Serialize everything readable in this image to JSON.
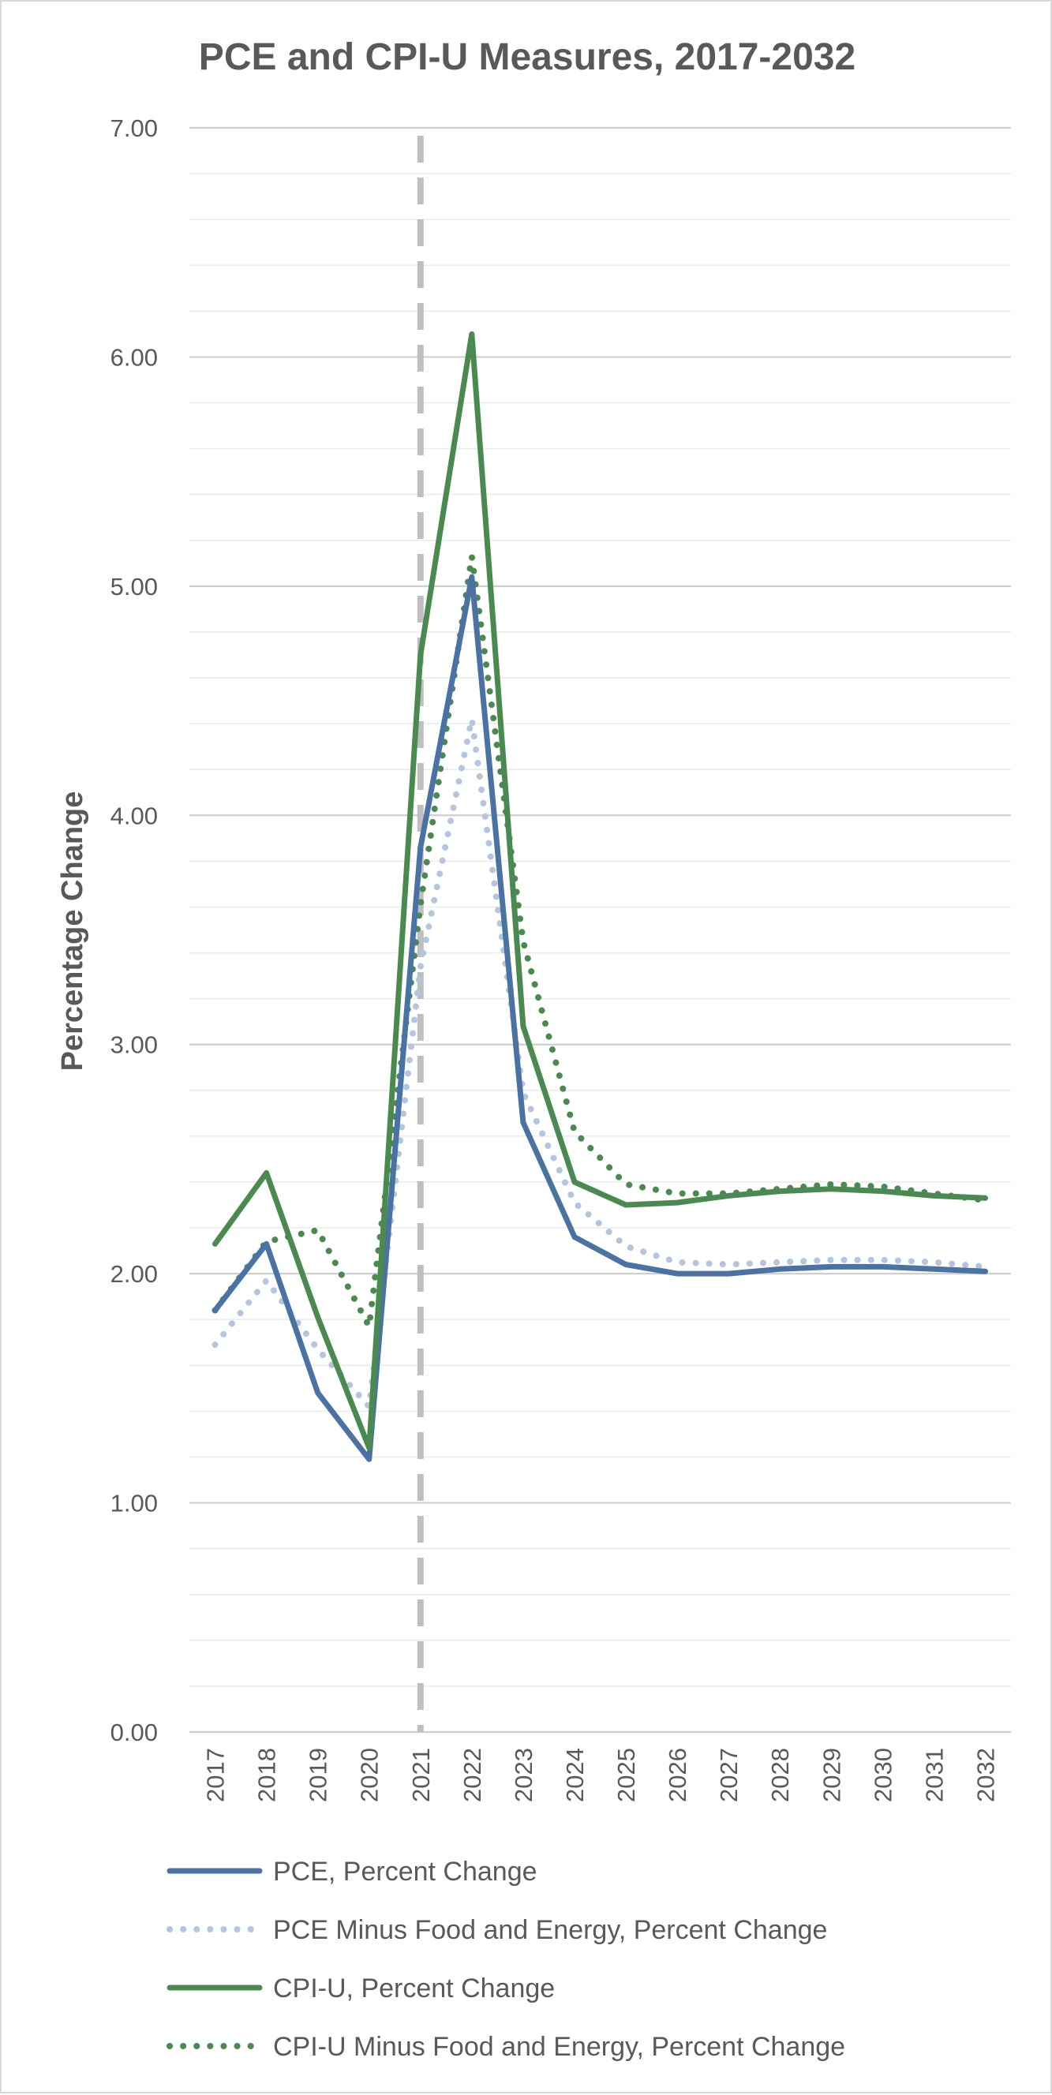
{
  "chart_data": {
    "type": "line",
    "title": "PCE and CPI-U Measures, 2017-2032",
    "xlabel": "",
    "ylabel": "Percentage Change",
    "categories": [
      "2017",
      "2018",
      "2019",
      "2020",
      "2021",
      "2022",
      "2023",
      "2024",
      "2025",
      "2026",
      "2027",
      "2028",
      "2029",
      "2030",
      "2031",
      "2032"
    ],
    "ylim": [
      0,
      7
    ],
    "y_major_ticks": [
      0,
      1,
      2,
      3,
      4,
      5,
      6,
      7
    ],
    "y_tick_labels": [
      "0.00",
      "1.00",
      "2.00",
      "3.00",
      "4.00",
      "5.00",
      "6.00",
      "7.00"
    ],
    "grid": "major and minor horizontal gridlines",
    "reference_line": {
      "category": "2021",
      "style": "dashed",
      "color": "#bfbfbf"
    },
    "legend_position": "bottom",
    "series": [
      {
        "name": "PCE, Percent Change",
        "style": "solid",
        "color": "#4a72a3",
        "values": [
          1.84,
          2.13,
          1.48,
          1.19,
          3.86,
          5.04,
          2.66,
          2.16,
          2.04,
          2.0,
          2.0,
          2.02,
          2.03,
          2.03,
          2.02,
          2.01
        ]
      },
      {
        "name": "PCE Minus Food and Energy, Percent Change",
        "style": "dotted",
        "color": "#b4c6dd",
        "values": [
          1.69,
          1.97,
          1.67,
          1.42,
          3.34,
          4.42,
          2.79,
          2.31,
          2.12,
          2.05,
          2.04,
          2.05,
          2.06,
          2.06,
          2.05,
          2.03
        ]
      },
      {
        "name": "CPI-U, Percent Change",
        "style": "solid",
        "color": "#4a8a50",
        "values": [
          2.13,
          2.44,
          1.81,
          1.24,
          4.7,
          6.1,
          3.08,
          2.4,
          2.3,
          2.31,
          2.34,
          2.36,
          2.37,
          2.36,
          2.34,
          2.33
        ]
      },
      {
        "name": "CPI-U Minus Food and Energy, Percent Change",
        "style": "dotted",
        "color": "#4a8a50",
        "values": [
          1.84,
          2.14,
          2.19,
          1.77,
          3.61,
          5.13,
          3.45,
          2.62,
          2.39,
          2.35,
          2.35,
          2.37,
          2.39,
          2.38,
          2.35,
          2.32
        ]
      }
    ]
  }
}
